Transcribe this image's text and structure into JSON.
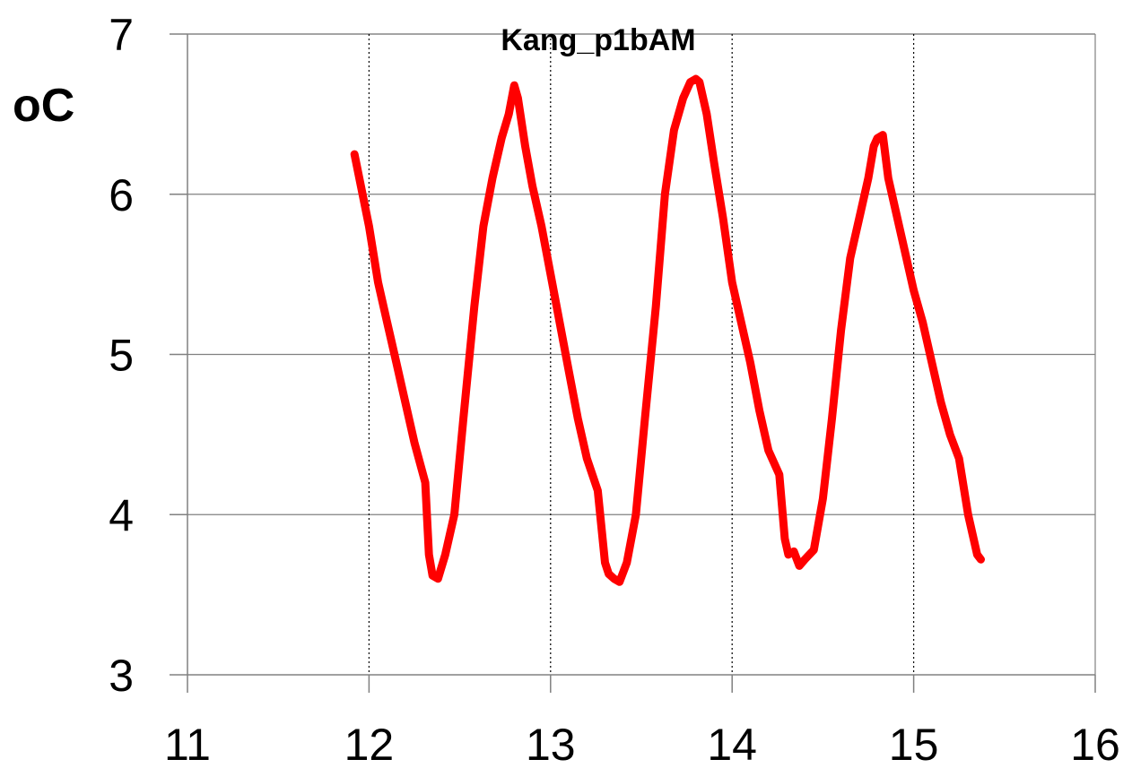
{
  "chart_data": {
    "type": "line",
    "title": "Kang_p1bAM",
    "xlabel": "",
    "ylabel": "oC",
    "xlim": [
      11,
      16
    ],
    "ylim": [
      3,
      7
    ],
    "x_ticks": [
      "11",
      "12",
      "13",
      "14",
      "15",
      "16"
    ],
    "y_ticks": [
      "3",
      "4",
      "5",
      "6",
      "7"
    ],
    "grid": {
      "horizontal": "solid",
      "vertical": "dotted"
    },
    "series": [
      {
        "color": "#ff0000",
        "x": [
          11.92,
          12.0,
          12.05,
          12.1,
          12.15,
          12.2,
          12.25,
          12.31,
          12.33,
          12.35,
          12.38,
          12.42,
          12.47,
          12.52,
          12.58,
          12.63,
          12.68,
          12.73,
          12.77,
          12.8,
          12.82,
          12.86,
          12.9,
          12.95,
          13.0,
          13.05,
          13.1,
          13.15,
          13.2,
          13.26,
          13.3,
          13.32,
          13.35,
          13.38,
          13.42,
          13.47,
          13.52,
          13.58,
          13.63,
          13.68,
          13.73,
          13.77,
          13.8,
          13.82,
          13.86,
          13.9,
          13.95,
          14.0,
          14.05,
          14.1,
          14.15,
          14.2,
          14.26,
          14.29,
          14.31,
          14.34,
          14.37,
          14.4,
          14.45,
          14.5,
          14.55,
          14.6,
          14.65,
          14.7,
          14.75,
          14.78,
          14.8,
          14.83,
          14.86,
          14.9,
          14.95,
          15.0,
          15.05,
          15.1,
          15.15,
          15.2,
          15.25,
          15.3,
          15.35,
          15.37
        ],
        "y": [
          6.25,
          5.8,
          5.45,
          5.2,
          4.95,
          4.7,
          4.45,
          4.2,
          3.75,
          3.62,
          3.6,
          3.75,
          4.0,
          4.6,
          5.3,
          5.8,
          6.1,
          6.35,
          6.5,
          6.68,
          6.6,
          6.3,
          6.05,
          5.8,
          5.5,
          5.2,
          4.9,
          4.6,
          4.35,
          4.15,
          3.7,
          3.63,
          3.6,
          3.58,
          3.7,
          4.0,
          4.6,
          5.3,
          6.0,
          6.4,
          6.6,
          6.7,
          6.72,
          6.7,
          6.5,
          6.2,
          5.85,
          5.45,
          5.2,
          4.95,
          4.65,
          4.4,
          4.25,
          3.85,
          3.75,
          3.77,
          3.68,
          3.72,
          3.78,
          4.1,
          4.6,
          5.15,
          5.6,
          5.85,
          6.1,
          6.3,
          6.35,
          6.37,
          6.1,
          5.9,
          5.65,
          5.4,
          5.2,
          4.95,
          4.7,
          4.5,
          4.35,
          4.0,
          3.75,
          3.72
        ]
      }
    ]
  }
}
